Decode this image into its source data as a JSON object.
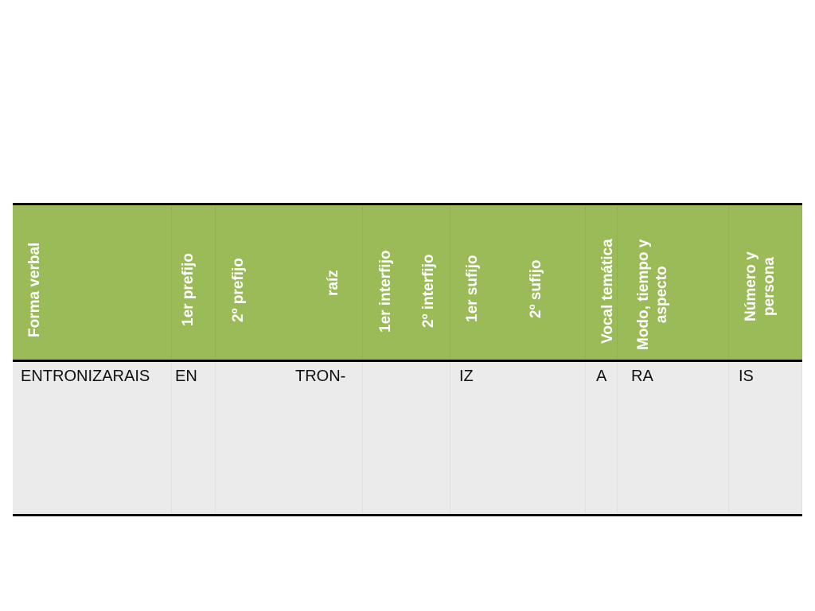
{
  "table": {
    "headers": [
      "Forma verbal",
      "1er prefijo",
      "2º prefijo",
      "raíz",
      "1er interfijo",
      "2º interfijo",
      "1er sufijo",
      "2º sufijo",
      "Vocal temática",
      "Modo, tiempo y\naspecto",
      "Número y\npersona"
    ],
    "row": [
      "ENTRONIZARAIS",
      "EN",
      "",
      "TRON-",
      "",
      "",
      "IZ",
      "",
      "A",
      "RA",
      "IS"
    ]
  },
  "colors": {
    "header_bg": "#9bbb59",
    "body_bg": "#ebebeb",
    "rule": "#000000"
  }
}
